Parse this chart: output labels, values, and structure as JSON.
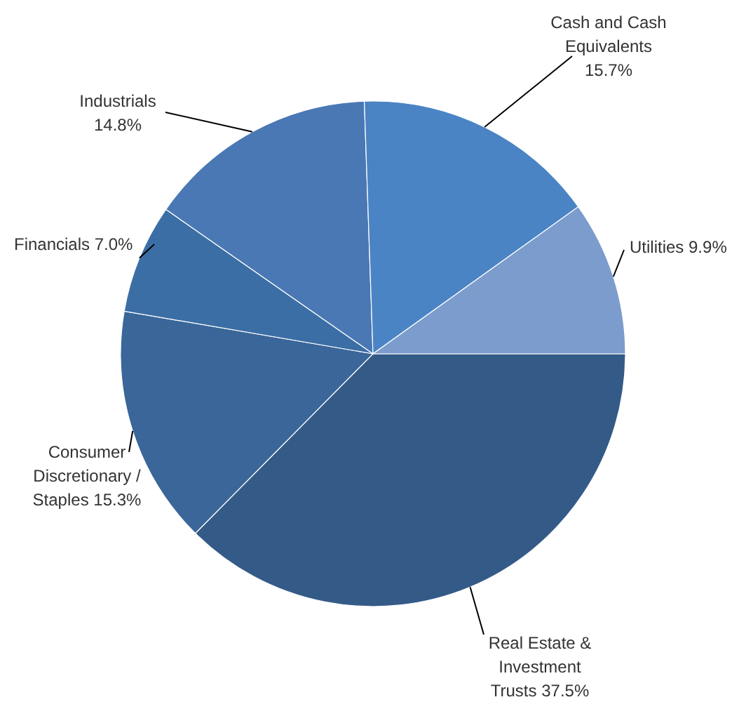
{
  "chart_data": {
    "type": "pie",
    "categories": [
      "Real Estate & Investment Trusts",
      "Consumer Discretionary / Staples",
      "Financials",
      "Industrials",
      "Cash and Cash Equivalents",
      "Utilities"
    ],
    "values": [
      37.5,
      15.3,
      7.0,
      14.8,
      15.7,
      9.9
    ],
    "value_labels": [
      "37.5%",
      "15.3%",
      "7.0%",
      "14.8%",
      "15.7%",
      "9.9%"
    ],
    "colors": [
      "#345a88",
      "#3a6699",
      "#3b6ea5",
      "#4a78b4",
      "#4a84c4",
      "#7b9ccc"
    ]
  }
}
